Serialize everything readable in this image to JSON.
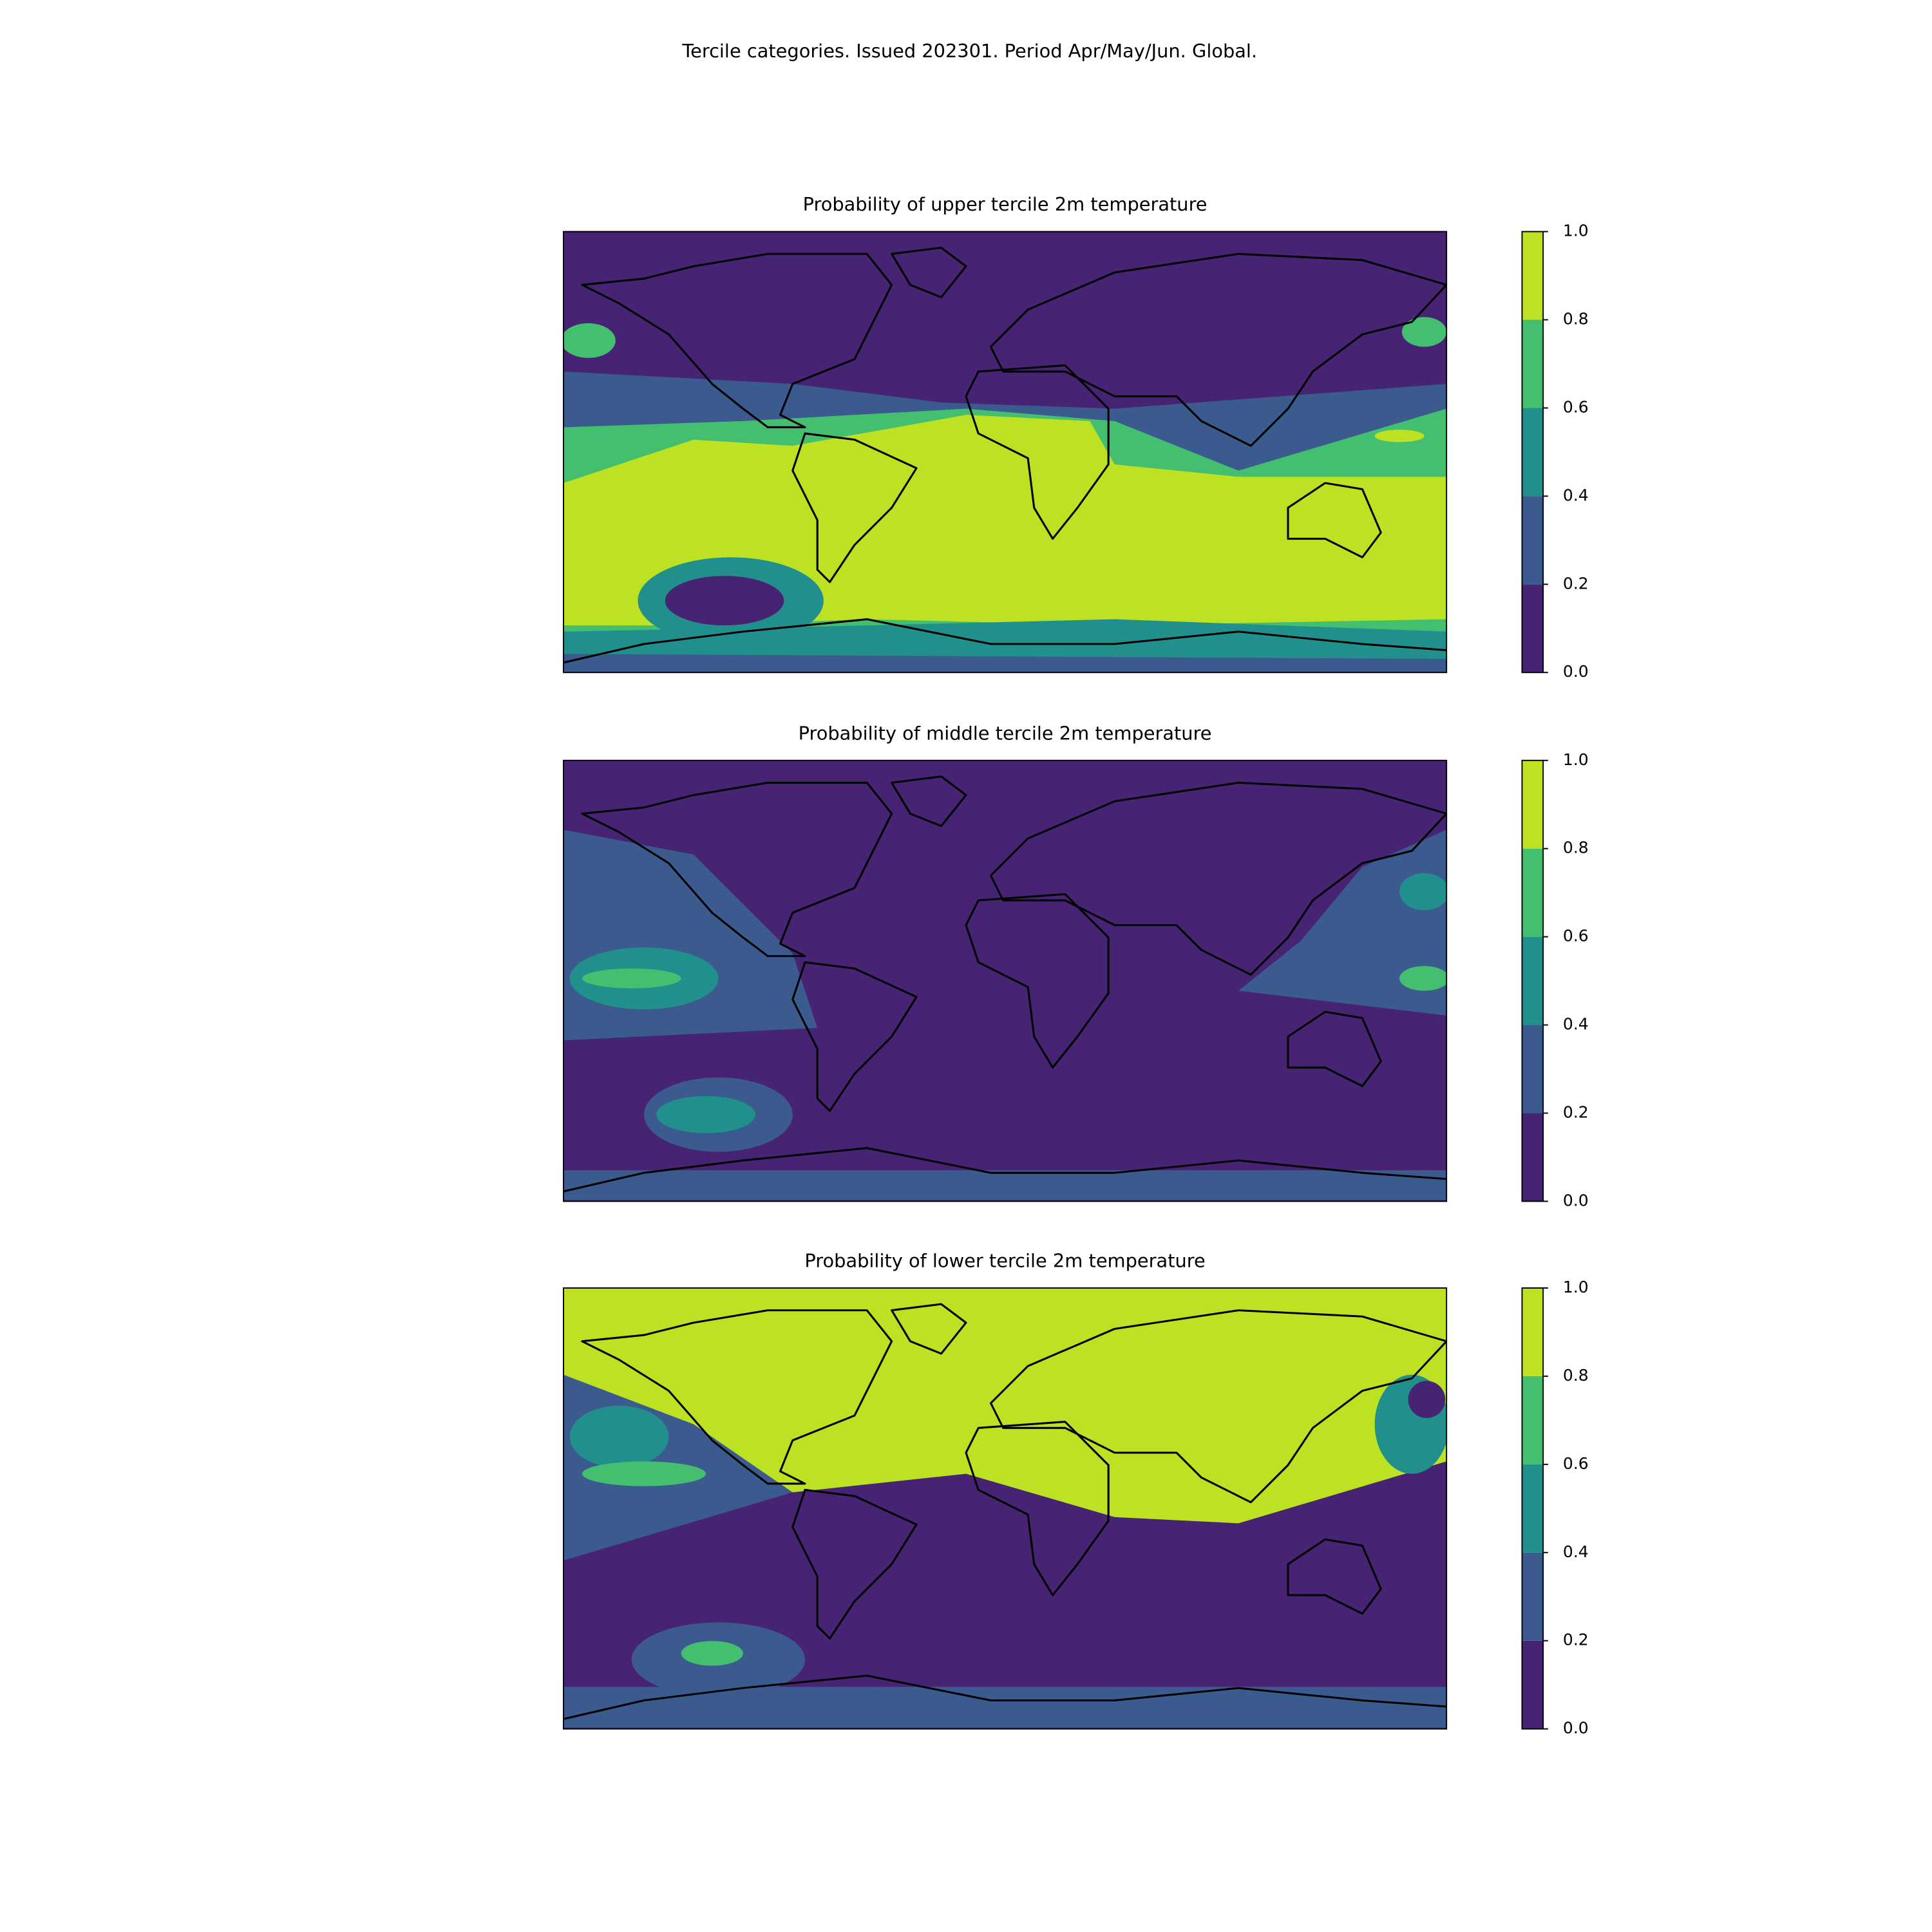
{
  "title": "Tercile categories. Issued 202301. Period Apr/May/Jun. Global.",
  "panels": [
    {
      "title": "Probability of upper tercile 2m temperature",
      "colorbar": {
        "ticks": [
          {
            "value": 0,
            "label": "0.0"
          },
          {
            "value": 0.2,
            "label": "0.2"
          },
          {
            "value": 0.4,
            "label": "0.4"
          },
          {
            "value": 0.6,
            "label": "0.6"
          },
          {
            "value": 0.8,
            "label": "0.8"
          },
          {
            "value": 1,
            "label": "1.0"
          }
        ],
        "colors": [
          "#472473",
          "#3b5b8e",
          "#21908d",
          "#44bf70",
          "#bde123"
        ]
      }
    },
    {
      "title": "Probability of middle tercile 2m temperature",
      "colorbar": {
        "ticks": [
          {
            "value": 0,
            "label": "0.0"
          },
          {
            "value": 0.2,
            "label": "0.2"
          },
          {
            "value": 0.4,
            "label": "0.4"
          },
          {
            "value": 0.6,
            "label": "0.6"
          },
          {
            "value": 0.8,
            "label": "0.8"
          },
          {
            "value": 1,
            "label": "1.0"
          }
        ],
        "colors": [
          "#472473",
          "#3b5b8e",
          "#21908d",
          "#44bf70",
          "#bde123"
        ]
      }
    },
    {
      "title": "Probability of lower tercile 2m temperature",
      "colorbar": {
        "ticks": [
          {
            "value": 0,
            "label": "0.0"
          },
          {
            "value": 0.2,
            "label": "0.2"
          },
          {
            "value": 0.4,
            "label": "0.4"
          },
          {
            "value": 0.6,
            "label": "0.6"
          },
          {
            "value": 0.8,
            "label": "0.8"
          },
          {
            "value": 1,
            "label": "1.0"
          }
        ],
        "colors": [
          "#472473",
          "#3b5b8e",
          "#21908d",
          "#44bf70",
          "#bde123"
        ]
      }
    }
  ]
}
